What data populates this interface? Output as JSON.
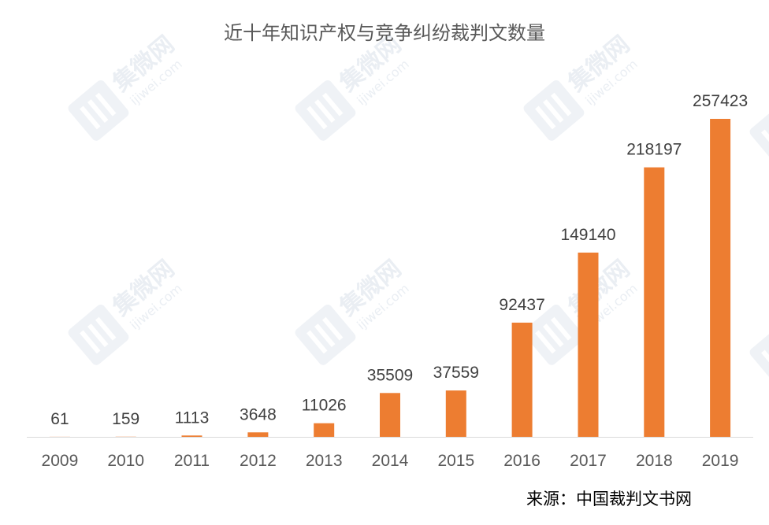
{
  "chart_data": {
    "type": "bar",
    "title": "近十年知识产权与竞争纠纷裁判文数量",
    "categories": [
      "2009",
      "2010",
      "2011",
      "2012",
      "2013",
      "2014",
      "2015",
      "2016",
      "2017",
      "2018",
      "2019"
    ],
    "values": [
      61,
      159,
      1113,
      3648,
      11026,
      35509,
      37559,
      92437,
      149140,
      218197,
      257423
    ],
    "xlabel": "",
    "ylabel": "",
    "ylim": [
      0,
      257423
    ],
    "grid": false,
    "legend": "none",
    "data_labels": true,
    "bar_color": "#ED7D31",
    "axis_color": "#D9D9D9"
  },
  "source": "来源：中国裁判文书网",
  "watermark": {
    "brand": "集微网",
    "domain": "ijiwei.com"
  }
}
